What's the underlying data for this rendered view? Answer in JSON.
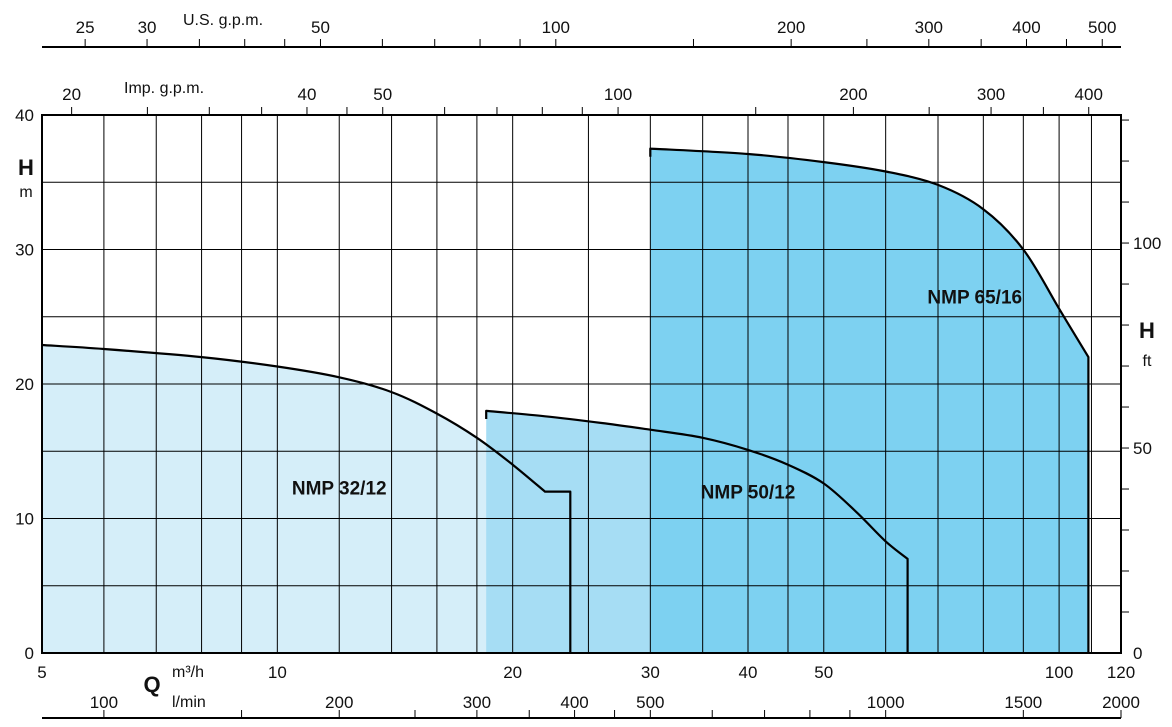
{
  "chart_data": {
    "type": "area",
    "x_scale": "log",
    "xlim": [
      5,
      120
    ],
    "ylim": [
      0,
      40
    ],
    "grid": true,
    "primary_x_unit": "m³/h",
    "primary_x_symbol": "Q",
    "y_symbol": "H",
    "y_unit_left": "m",
    "y_unit_right": "ft",
    "x_ticks_m3h": [
      "5",
      "10",
      "20",
      "30",
      "40",
      "50",
      "100",
      "120"
    ],
    "y_ticks_m": [
      "0",
      "10",
      "20",
      "30",
      "40"
    ],
    "secondary_axes": {
      "us_gpm": {
        "label": "U.S. g.p.m.",
        "ticks": [
          "25",
          "30",
          "50",
          "100",
          "200",
          "300",
          "400",
          "500"
        ]
      },
      "imp_gpm": {
        "label": "Imp. g.p.m.",
        "ticks": [
          "20",
          "40",
          "50",
          "100",
          "200",
          "300",
          "400"
        ]
      },
      "l_min": {
        "label": "l/min",
        "ticks": [
          "100",
          "200",
          "300",
          "400",
          "500",
          "1000",
          "1500",
          "2000"
        ]
      },
      "ft": {
        "ticks": [
          "0",
          "50",
          "100"
        ]
      }
    },
    "series": [
      {
        "name": "NMP 32/12",
        "color": "#d5eef9",
        "points": [
          [
            5,
            22.9
          ],
          [
            6,
            22.6
          ],
          [
            8,
            22
          ],
          [
            10,
            21.3
          ],
          [
            12,
            20.5
          ],
          [
            14,
            19.4
          ],
          [
            16,
            17.8
          ],
          [
            18,
            16.0
          ],
          [
            20,
            14.0
          ],
          [
            22,
            12.0
          ],
          [
            23.7,
            12.0
          ]
        ],
        "x_end": 23.7
      },
      {
        "name": "NMP 50/12",
        "color": "#a6ddf4",
        "x_start": 18.5,
        "points": [
          [
            18.5,
            18.0
          ],
          [
            22,
            17.6
          ],
          [
            26,
            17.1
          ],
          [
            30,
            16.6
          ],
          [
            35,
            16.0
          ],
          [
            40,
            15.1
          ],
          [
            45,
            14.0
          ],
          [
            50,
            12.6
          ],
          [
            55,
            10.5
          ],
          [
            60,
            8.3
          ],
          [
            64,
            7.0
          ]
        ],
        "x_end": 64
      },
      {
        "name": "NMP 65/16",
        "color": "#7dd1f1",
        "x_start": 30,
        "points": [
          [
            30,
            37.5
          ],
          [
            40,
            37.1
          ],
          [
            50,
            36.5
          ],
          [
            60,
            35.8
          ],
          [
            70,
            34.8
          ],
          [
            80,
            33.0
          ],
          [
            90,
            30.0
          ],
          [
            100,
            25.6
          ],
          [
            109,
            22.0
          ]
        ],
        "x_end": 109
      }
    ]
  }
}
